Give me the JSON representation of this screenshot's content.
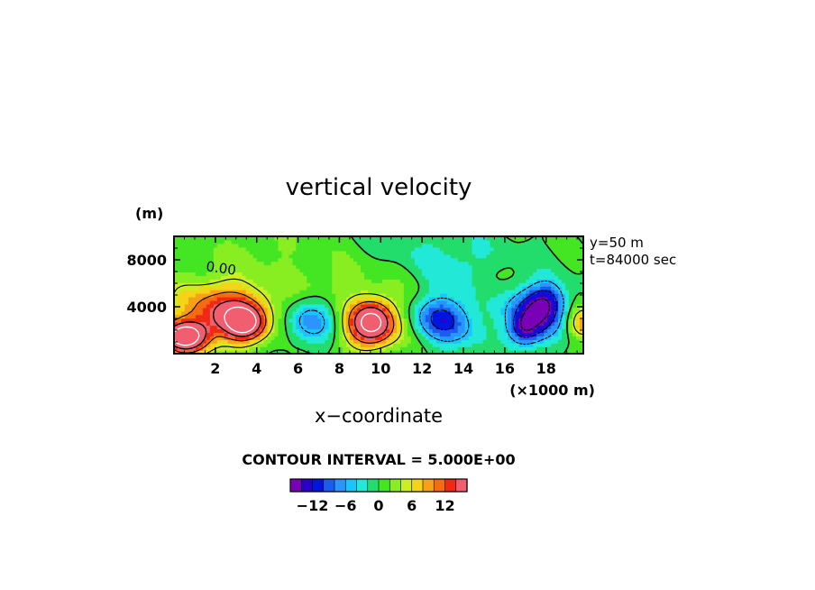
{
  "chart_data": {
    "type": "heatmap",
    "title": "vertical velocity",
    "xlabel": "x−coordinate",
    "x_unit": "(×1000 m)",
    "y_unit": "(m)",
    "xlim": [
      0,
      19.8
    ],
    "ylim": [
      0,
      10000
    ],
    "x_ticks": [
      2,
      4,
      6,
      8,
      10,
      12,
      14,
      16,
      18
    ],
    "x_tick_labels": [
      "2",
      "4",
      "6",
      "8",
      "10",
      "12",
      "14",
      "16",
      "18"
    ],
    "y_ticks": [
      4000,
      8000
    ],
    "y_tick_labels": [
      "4000",
      "8000"
    ],
    "info_lines": [
      "y=50 m",
      "t=84000 sec"
    ],
    "contour_label": "0.00",
    "contour_interval_text": "CONTOUR INTERVAL = 5.000E+00",
    "colorbar": {
      "min": -16,
      "max": 16,
      "step": 2,
      "tick_values": [
        -12,
        -6,
        0,
        6,
        12
      ],
      "tick_labels": [
        "−12",
        "−6",
        "0",
        "6",
        "12"
      ],
      "colors": [
        "#7a00b8",
        "#2a00c8",
        "#0016e0",
        "#1a5cf0",
        "#2a94ff",
        "#19c4ff",
        "#22e8d8",
        "#22dd6c",
        "#44e624",
        "#88ee22",
        "#ccee22",
        "#f2d418",
        "#f7a018",
        "#f76a14",
        "#f02814",
        "#f05e70"
      ]
    },
    "features": [
      {
        "x": 0.5,
        "z": 1400,
        "w": 22,
        "type": "updraft"
      },
      {
        "x": 2.8,
        "z": 3300,
        "w": 11,
        "type": "updraft"
      },
      {
        "x": 3.4,
        "z": 2600,
        "w": 15,
        "type": "updraft"
      },
      {
        "x": 6.6,
        "z": 2800,
        "w": -8,
        "type": "downdraft"
      },
      {
        "x": 9.6,
        "z": 2800,
        "w": 18,
        "type": "updraft"
      },
      {
        "x": 12.9,
        "z": 3200,
        "w": -9,
        "type": "downdraft"
      },
      {
        "x": 17.4,
        "z": 3400,
        "w": -14,
        "type": "downdraft"
      },
      {
        "x": 19.8,
        "z": 2600,
        "w": 9,
        "type": "updraft"
      }
    ]
  }
}
